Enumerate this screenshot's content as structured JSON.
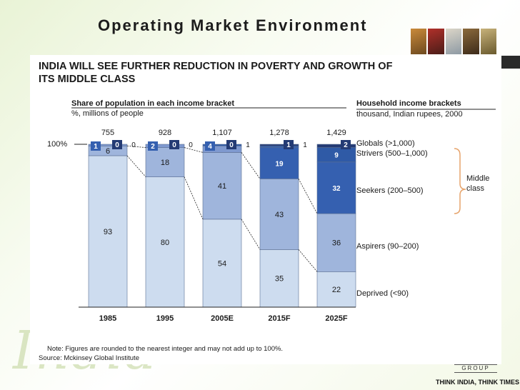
{
  "slide": {
    "title": "Operating Market Environment",
    "watermark": "India",
    "brand_group": "GROUP",
    "brand_tagline": "THINK INDIA, THINK TIMES"
  },
  "colors": {
    "deprived": "#cddcef",
    "aspirers": "#9fb5dc",
    "seekers": "#7f99cf",
    "seekers_dark": "#3560b0",
    "strivers": "#2f5aa6",
    "globals": "#243b74",
    "brace": "#e6a36b"
  },
  "chart_data": {
    "type": "bar",
    "title": "INDIA WILL SEE FURTHER REDUCTION IN POVERTY AND GROWTH OF ITS MIDDLE CLASS",
    "title_line1": "INDIA WILL SEE FURTHER REDUCTION IN POVERTY AND GROWTH OF",
    "title_line2": "ITS MIDDLE CLASS",
    "subtitle": "Share of population in each income bracket",
    "subtitle_units": "%, millions of people",
    "legend_title": "Household income brackets",
    "legend_units": "thousand, Indian rupees, 2000",
    "ylabel_100": "100%",
    "categories": [
      "1985",
      "1995",
      "2005E",
      "2015F",
      "2025F"
    ],
    "totals": [
      "755",
      "928",
      "1,107",
      "1,278",
      "1,429"
    ],
    "series": [
      {
        "name": "Deprived (<90)",
        "values": [
          93,
          80,
          54,
          35,
          22
        ],
        "labels": [
          "93",
          "80",
          "54",
          "35",
          "22"
        ]
      },
      {
        "name": "Aspirers (90–200)",
        "values": [
          6,
          18,
          41,
          43,
          36
        ],
        "labels": [
          "6",
          "18",
          "41",
          "43",
          "36"
        ]
      },
      {
        "name": "Seekers (200–500)",
        "values": [
          1,
          2,
          4,
          19,
          32
        ],
        "labels": [
          "1",
          "2",
          "4",
          "19",
          "32"
        ]
      },
      {
        "name": "Strivers (500–1,000)",
        "values": [
          0,
          0,
          1,
          1,
          9
        ],
        "labels": [
          "0",
          "0",
          "1",
          "1",
          "9"
        ]
      },
      {
        "name": "Globals (>1,000)",
        "values": [
          0,
          0,
          0,
          1,
          2
        ],
        "labels": [
          "0",
          "0",
          "0",
          "1",
          "2"
        ]
      }
    ],
    "middle_class_label": [
      "Middle",
      "class"
    ],
    "note": "Note: Figures are rounded to the nearest integer and may not add up to 100%.",
    "source": "Source: Mckinsey Global Institute"
  }
}
